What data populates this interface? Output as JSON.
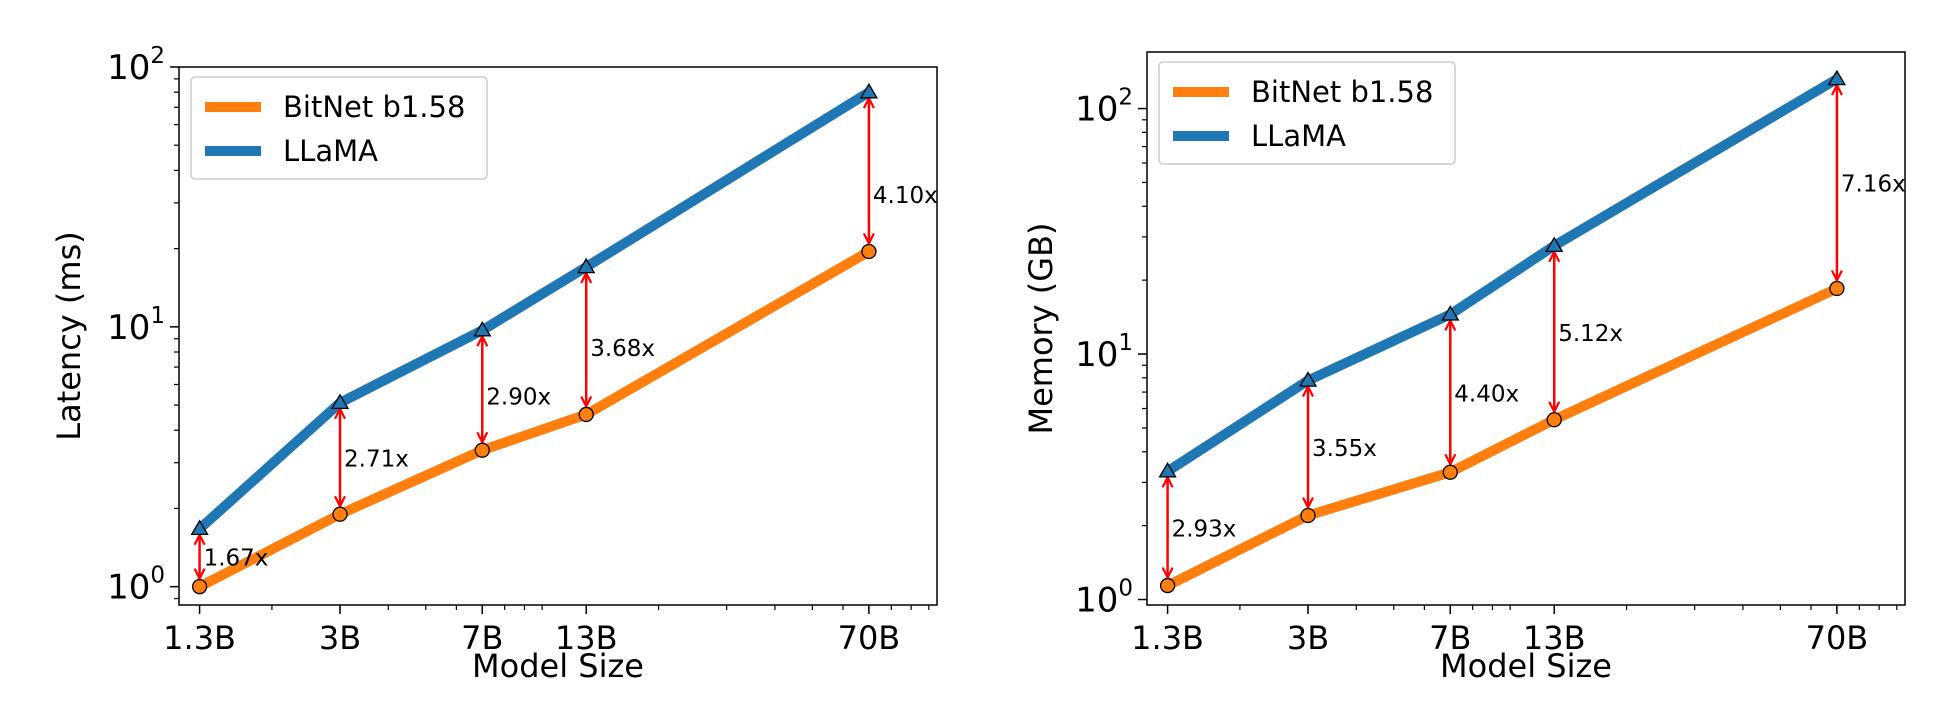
{
  "colors": {
    "bitnet": "#ff7f0e",
    "llama": "#1f77b4",
    "arrow": "#ff0000"
  },
  "chart_data": [
    {
      "type": "line",
      "xlabel": "Model Size",
      "ylabel": "Latency (ms)",
      "categories": [
        "1.3B",
        "3B",
        "7B",
        "13B",
        "70B"
      ],
      "x": [
        1.3,
        3,
        7,
        13,
        70
      ],
      "y_scale": "log",
      "ylim": [
        0.85,
        100
      ],
      "y_ticks": [
        {
          "value": 1,
          "base": "10",
          "exp": "0"
        },
        {
          "value": 10,
          "base": "10",
          "exp": "1"
        },
        {
          "value": 100,
          "base": "10",
          "exp": "2"
        }
      ],
      "legend": "top-left",
      "series": [
        {
          "name": "BitNet b1.58",
          "marker": "circle",
          "color": "#ff7f0e",
          "values": [
            1.0,
            1.9,
            3.35,
            4.6,
            19.5
          ]
        },
        {
          "name": "LLaMA",
          "marker": "triangle",
          "color": "#1f77b4",
          "values": [
            1.67,
            5.1,
            9.7,
            17.0,
            80.0
          ]
        }
      ],
      "annotations": [
        "1.67x",
        "2.71x",
        "2.90x",
        "3.68x",
        "4.10x"
      ]
    },
    {
      "type": "line",
      "xlabel": "Model Size",
      "ylabel": "Memory (GB)",
      "categories": [
        "1.3B",
        "3B",
        "7B",
        "13B",
        "70B"
      ],
      "x": [
        1.3,
        3,
        7,
        13,
        70
      ],
      "y_scale": "log",
      "ylim": [
        0.95,
        170
      ],
      "y_ticks": [
        {
          "value": 1,
          "base": "10",
          "exp": "0"
        },
        {
          "value": 10,
          "base": "10",
          "exp": "1"
        },
        {
          "value": 100,
          "base": "10",
          "exp": "2"
        }
      ],
      "legend": "top-left",
      "series": [
        {
          "name": "BitNet b1.58",
          "marker": "circle",
          "color": "#ff7f0e",
          "values": [
            1.14,
            2.2,
            3.3,
            5.4,
            18.5
          ]
        },
        {
          "name": "LLaMA",
          "marker": "triangle",
          "color": "#1f77b4",
          "values": [
            3.33,
            7.8,
            14.5,
            27.6,
            132.0
          ]
        }
      ],
      "annotations": [
        "2.93x",
        "3.55x",
        "4.40x",
        "5.12x",
        "7.16x"
      ]
    }
  ]
}
